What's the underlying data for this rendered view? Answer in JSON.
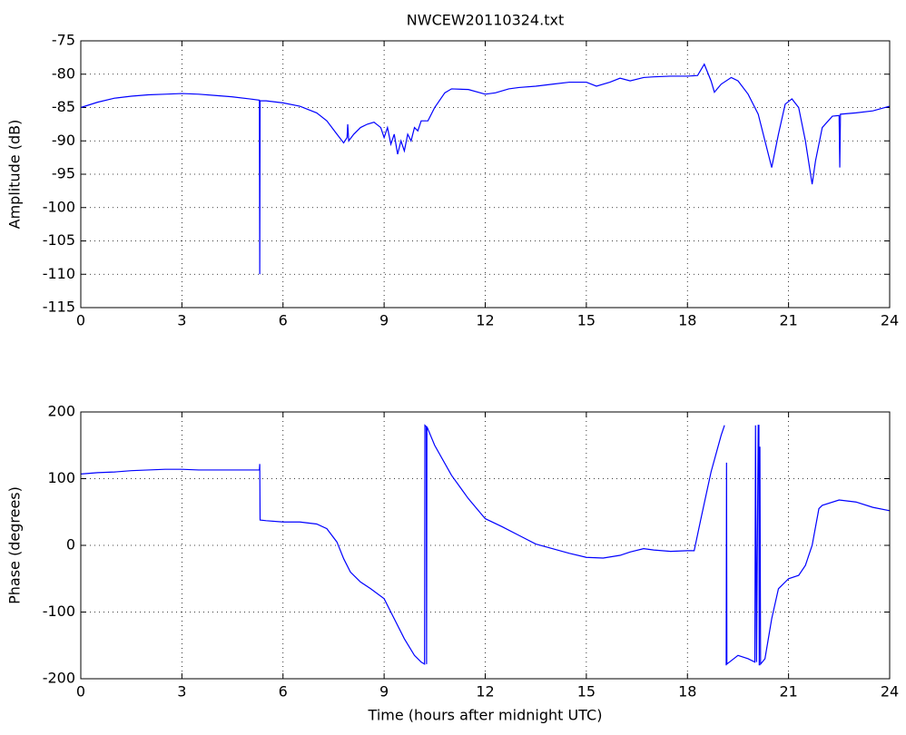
{
  "chart_data": [
    {
      "type": "line",
      "title": "NWCEW20110324.txt",
      "ylabel": "Amplitude (dB)",
      "color": "#0000ff",
      "grid": true,
      "xlim": [
        0,
        24
      ],
      "xticks": [
        0,
        3,
        6,
        9,
        12,
        15,
        18,
        21,
        24
      ],
      "ylim": [
        -115,
        -75
      ],
      "yticks": [
        -115,
        -110,
        -105,
        -100,
        -95,
        -90,
        -85,
        -80,
        -75
      ],
      "x": [
        0,
        0.5,
        1,
        1.5,
        2,
        2.5,
        3,
        3.5,
        4,
        4.5,
        5,
        5.3,
        5.31,
        5.32,
        5.5,
        6,
        6.5,
        7,
        7.3,
        7.6,
        7.8,
        7.9,
        7.92,
        7.95,
        8.1,
        8.3,
        8.5,
        8.7,
        8.9,
        9.0,
        9.1,
        9.2,
        9.3,
        9.4,
        9.5,
        9.6,
        9.7,
        9.8,
        9.9,
        10.0,
        10.1,
        10.3,
        10.5,
        10.8,
        11,
        11.5,
        12,
        12.3,
        12.7,
        13,
        13.5,
        14,
        14.5,
        15,
        15.3,
        15.7,
        16,
        16.3,
        16.7,
        17,
        17.5,
        18,
        18.3,
        18.5,
        18.7,
        18.8,
        19,
        19.3,
        19.5,
        19.8,
        20.1,
        20.3,
        20.5,
        20.7,
        20.9,
        21.1,
        21.3,
        21.5,
        21.7,
        21.8,
        22.0,
        22.3,
        22.5,
        22.52,
        22.54,
        23,
        23.5,
        24
      ],
      "values": [
        -85,
        -84.2,
        -83.6,
        -83.3,
        -83.1,
        -83.0,
        -82.9,
        -83.0,
        -83.2,
        -83.4,
        -83.7,
        -83.9,
        -110,
        -84.0,
        -84.0,
        -84.3,
        -84.8,
        -85.8,
        -87,
        -89,
        -90.3,
        -89.5,
        -87.5,
        -90,
        -89,
        -88,
        -87.5,
        -87.2,
        -88,
        -89.5,
        -88,
        -90.5,
        -89,
        -92,
        -90,
        -91.5,
        -89,
        -90,
        -88,
        -88.5,
        -87,
        -87,
        -85,
        -82.8,
        -82.2,
        -82.3,
        -83,
        -82.8,
        -82.2,
        -82,
        -81.8,
        -81.5,
        -81.2,
        -81.2,
        -81.8,
        -81.2,
        -80.6,
        -81,
        -80.5,
        -80.4,
        -80.3,
        -80.3,
        -80.2,
        -78.5,
        -81,
        -82.7,
        -81.5,
        -80.5,
        -81,
        -83,
        -86,
        -90,
        -94,
        -89,
        -84.5,
        -83.7,
        -85,
        -90,
        -96.5,
        -93,
        -88,
        -86.3,
        -86.2,
        -94,
        -86,
        -85.8,
        -85.5,
        -84.8
      ]
    },
    {
      "type": "line",
      "xlabel": "Time (hours after midnight UTC)",
      "ylabel": "Phase (degrees)",
      "color": "#0000ff",
      "grid": true,
      "xlim": [
        0,
        24
      ],
      "xticks": [
        0,
        3,
        6,
        9,
        12,
        15,
        18,
        21,
        24
      ],
      "ylim": [
        -200,
        200
      ],
      "yticks": [
        -200,
        -100,
        0,
        100,
        200
      ],
      "x": [
        0,
        0.5,
        1,
        1.5,
        2,
        2.5,
        3,
        3.5,
        4,
        4.5,
        5,
        5.3,
        5.31,
        5.32,
        5.5,
        6,
        6.5,
        7,
        7.3,
        7.6,
        7.8,
        8,
        8.3,
        8.6,
        9,
        9.3,
        9.6,
        9.9,
        10.1,
        10.2,
        10.21,
        10.25,
        10.26,
        10.27,
        10.5,
        11,
        11.5,
        12,
        12.5,
        13,
        13.5,
        14,
        14.5,
        15,
        15.5,
        16,
        16.3,
        16.7,
        17,
        17.5,
        18,
        18.2,
        18.4,
        18.7,
        19,
        19.1,
        19.12,
        19.15,
        19.16,
        19.17,
        19.5,
        19.8,
        20.0,
        20.02,
        20.05,
        20.1,
        20.12,
        20.13,
        20.15,
        20.17,
        20.3,
        20.5,
        20.7,
        21,
        21.3,
        21.5,
        21.7,
        21.9,
        22,
        22.5,
        23,
        23.5,
        24
      ],
      "values": [
        107,
        109,
        110,
        112,
        113,
        114,
        114,
        113,
        113,
        113,
        113,
        113,
        122,
        38,
        37,
        35,
        35,
        32,
        25,
        5,
        -20,
        -40,
        -55,
        -65,
        -80,
        -110,
        -140,
        -165,
        -175,
        -178,
        180,
        178,
        -178,
        178,
        150,
        105,
        70,
        40,
        28,
        15,
        2,
        -5,
        -12,
        -18,
        -19,
        -15,
        -10,
        -5,
        -7,
        -9,
        -8,
        -8,
        40,
        110,
        165,
        180,
        null,
        -180,
        124,
        -178,
        -165,
        -170,
        -175,
        180,
        -175,
        180,
        180,
        -180,
        148,
        -178,
        -170,
        -110,
        -65,
        -50,
        -45,
        -30,
        0,
        55,
        60,
        68,
        65,
        57,
        52
      ]
    }
  ]
}
